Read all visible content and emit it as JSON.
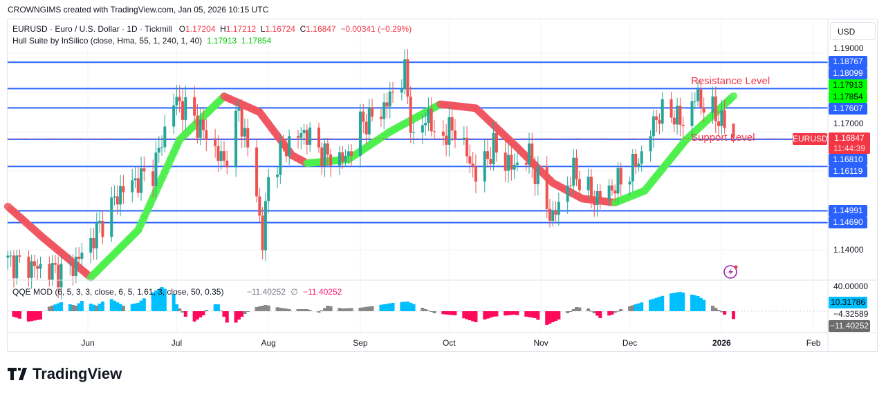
{
  "header": {
    "credit": "CROWNGIMS created with TradingView.com, Jan 05, 2026 10:15 UTC"
  },
  "legend": {
    "symbol": "EURUSD · Euro / U.S. Dollar · 1D · Tickmill",
    "o_label": "O",
    "open": "1.17204",
    "h_label": "H",
    "high": "1.17212",
    "l_label": "L",
    "low": "1.16724",
    "c_label": "C",
    "close": "1.16847",
    "change": "−0.00341 (−0.29%)",
    "hull_name": "Hull Suite by InSilico (close, Hma, 55, 1, 240, 1, 40)",
    "hull_v1": "1.17913",
    "hull_v2": "1.17854"
  },
  "qqe_legend": {
    "name": "QQE MOD (6, 5, 3, 3, close, 6, 5, 1.61, 3, close, 50, 0.35)",
    "v1": "−11.40252",
    "sep": "∅",
    "v2": "−11.40252"
  },
  "currency": "USD",
  "price_ticks": [
    "1.19000",
    "1.17000",
    "1.14000"
  ],
  "qqe_ticks": [
    "40.00000",
    "−4.32589"
  ],
  "price_labels": [
    {
      "text": "1.18767",
      "color": "#2962ff"
    },
    {
      "text": "1.18099",
      "color": "#2962ff"
    },
    {
      "text": "1.17913",
      "color": "#00ff00"
    },
    {
      "text": "1.17854",
      "color": "#00ff00"
    },
    {
      "text": "1.17607",
      "color": "#2962ff"
    },
    {
      "text": "1.16810",
      "color": "#2962ff"
    },
    {
      "text": "1.16119",
      "color": "#2962ff"
    },
    {
      "text": "1.14991",
      "color": "#2962ff"
    },
    {
      "text": "1.14690",
      "color": "#2962ff"
    }
  ],
  "last_price": {
    "symbol": "EURUSD",
    "price": "1.16847",
    "countdown": "11:44:39",
    "color": "#f23645"
  },
  "qqe_labels": {
    "blue": "10.31786",
    "gray": "−11.40252"
  },
  "time_labels": [
    {
      "text": "Jun",
      "date": "2025-06-01"
    },
    {
      "text": "Jul",
      "date": "2025-07-01"
    },
    {
      "text": "Aug",
      "date": "2025-08-01"
    },
    {
      "text": "Sep",
      "date": "2025-09-01"
    },
    {
      "text": "Oct",
      "date": "2025-10-01"
    },
    {
      "text": "Nov",
      "date": "2025-11-01"
    },
    {
      "text": "Dec",
      "date": "2025-12-01"
    },
    {
      "text": "2026",
      "date": "2026-01-01"
    },
    {
      "text": "Feb",
      "date": "2026-02-01"
    }
  ],
  "annotations": {
    "resistance": "Resistance Level",
    "support": "Support Level"
  },
  "brand": "TradingView",
  "chart_data": {
    "type": "candlestick",
    "symbol": "EURUSD",
    "interval": "1D",
    "ylim": [
      1.1335,
      1.1942
    ],
    "xlim": [
      "2025-05-05",
      "2026-02-05"
    ],
    "colors": {
      "up": "#26a69a",
      "down": "#ef5350",
      "level": "#2962ff",
      "hull_up": "#00ff00",
      "hull_down": "#f23645",
      "qqe_blue": "#00bfff",
      "qqe_red": "#ff0a5a",
      "qqe_gray": "#888888"
    },
    "levels": [
      1.18767,
      1.18099,
      1.17607,
      1.1681,
      1.16119,
      1.14991,
      1.1469
    ],
    "last_bar": {
      "date": "2026-01-05",
      "open": 1.17204,
      "high": 1.17212,
      "low": 1.16724,
      "close": 1.16847
    },
    "close_keypoints": [
      [
        "2025-05-05",
        1.137
      ],
      [
        "2025-05-25",
        1.134
      ],
      [
        "2025-06-02",
        1.142
      ],
      [
        "2025-06-12",
        1.155
      ],
      [
        "2025-06-23",
        1.16
      ],
      [
        "2025-06-30",
        1.178
      ],
      [
        "2025-07-04",
        1.176
      ],
      [
        "2025-07-11",
        1.169
      ],
      [
        "2025-07-17",
        1.162
      ],
      [
        "2025-07-22",
        1.175
      ],
      [
        "2025-07-27",
        1.16
      ],
      [
        "2025-07-30",
        1.142
      ],
      [
        "2025-08-01",
        1.158
      ],
      [
        "2025-08-06",
        1.166
      ],
      [
        "2025-08-13",
        1.17
      ],
      [
        "2025-08-20",
        1.164
      ],
      [
        "2025-08-27",
        1.163
      ],
      [
        "2025-09-01",
        1.172
      ],
      [
        "2025-09-08",
        1.175
      ],
      [
        "2025-09-16",
        1.185
      ],
      [
        "2025-09-19",
        1.167
      ],
      [
        "2025-09-24",
        1.175
      ],
      [
        "2025-09-26",
        1.168
      ],
      [
        "2025-10-03",
        1.171
      ],
      [
        "2025-10-10",
        1.159
      ],
      [
        "2025-10-16",
        1.166
      ],
      [
        "2025-10-22",
        1.161
      ],
      [
        "2025-10-28",
        1.164
      ],
      [
        "2025-11-03",
        1.151
      ],
      [
        "2025-11-05",
        1.148
      ],
      [
        "2025-11-12",
        1.16
      ],
      [
        "2025-11-19",
        1.153
      ],
      [
        "2025-11-24",
        1.155
      ],
      [
        "2025-12-01",
        1.16
      ],
      [
        "2025-12-05",
        1.164
      ],
      [
        "2025-12-10",
        1.174
      ],
      [
        "2025-12-15",
        1.175
      ],
      [
        "2025-12-19",
        1.172
      ],
      [
        "2025-12-23",
        1.179
      ],
      [
        "2025-12-29",
        1.175
      ],
      [
        "2026-01-02",
        1.172
      ],
      [
        "2026-01-05",
        1.16847
      ]
    ],
    "hull_keypoints": [
      [
        "2025-05-05",
        1.151
      ],
      [
        "2025-05-17",
        1.143
      ],
      [
        "2025-06-02",
        1.133
      ],
      [
        "2025-06-18",
        1.145
      ],
      [
        "2025-07-02",
        1.168
      ],
      [
        "2025-07-17",
        1.179
      ],
      [
        "2025-07-29",
        1.175
      ],
      [
        "2025-08-09",
        1.164
      ],
      [
        "2025-08-14",
        1.162
      ],
      [
        "2025-08-28",
        1.163
      ],
      [
        "2025-09-11",
        1.17
      ],
      [
        "2025-09-28",
        1.177
      ],
      [
        "2025-10-10",
        1.176
      ],
      [
        "2025-10-24",
        1.166
      ],
      [
        "2025-11-05",
        1.157
      ],
      [
        "2025-11-15",
        1.153
      ],
      [
        "2025-11-26",
        1.152
      ],
      [
        "2025-12-06",
        1.155
      ],
      [
        "2025-12-20",
        1.168
      ],
      [
        "2026-01-05",
        1.1791
      ]
    ],
    "qqe_keypoints": [
      [
        "2025-05-07",
        -8
      ],
      [
        "2025-05-12",
        -15
      ],
      [
        "2025-05-16",
        -12
      ],
      [
        "2025-05-18",
        5
      ],
      [
        "2025-05-23",
        13
      ],
      [
        "2025-05-28",
        8
      ],
      [
        "2025-05-30",
        15
      ],
      [
        "2025-06-04",
        8
      ],
      [
        "2025-06-08",
        20
      ],
      [
        "2025-06-13",
        8
      ],
      [
        "2025-06-18",
        12
      ],
      [
        "2025-06-21",
        22
      ],
      [
        "2025-06-26",
        35
      ],
      [
        "2025-06-30",
        25
      ],
      [
        "2025-07-01",
        10
      ],
      [
        "2025-07-04",
        -8
      ],
      [
        "2025-07-07",
        -15
      ],
      [
        "2025-07-10",
        -6
      ],
      [
        "2025-07-12",
        10
      ],
      [
        "2025-07-15",
        10
      ],
      [
        "2025-07-17",
        -8
      ],
      [
        "2025-07-19",
        -25
      ],
      [
        "2025-07-23",
        -8
      ],
      [
        "2025-07-26",
        4
      ],
      [
        "2025-07-31",
        9
      ],
      [
        "2025-08-05",
        5
      ],
      [
        "2025-08-08",
        3
      ],
      [
        "2025-08-14",
        3
      ],
      [
        "2025-08-18",
        -2
      ],
      [
        "2025-08-21",
        8
      ],
      [
        "2025-08-26",
        4
      ],
      [
        "2025-09-01",
        5
      ],
      [
        "2025-09-06",
        8
      ],
      [
        "2025-09-12",
        12
      ],
      [
        "2025-09-17",
        14
      ],
      [
        "2025-09-22",
        5
      ],
      [
        "2025-09-26",
        -3
      ],
      [
        "2025-10-03",
        -6
      ],
      [
        "2025-10-10",
        -16
      ],
      [
        "2025-10-16",
        -8
      ],
      [
        "2025-10-23",
        -5
      ],
      [
        "2025-10-30",
        -10
      ],
      [
        "2025-11-03",
        -20
      ],
      [
        "2025-11-07",
        -12
      ],
      [
        "2025-11-13",
        6
      ],
      [
        "2025-11-17",
        4
      ],
      [
        "2025-11-21",
        -10
      ],
      [
        "2025-11-25",
        -5
      ],
      [
        "2025-11-28",
        3
      ],
      [
        "2025-12-03",
        10
      ],
      [
        "2025-12-09",
        18
      ],
      [
        "2025-12-14",
        25
      ],
      [
        "2025-12-18",
        28
      ],
      [
        "2025-12-24",
        22
      ],
      [
        "2025-12-29",
        8
      ],
      [
        "2025-12-31",
        2
      ],
      [
        "2026-01-02",
        -5
      ],
      [
        "2026-01-05",
        -11.40252
      ]
    ]
  }
}
